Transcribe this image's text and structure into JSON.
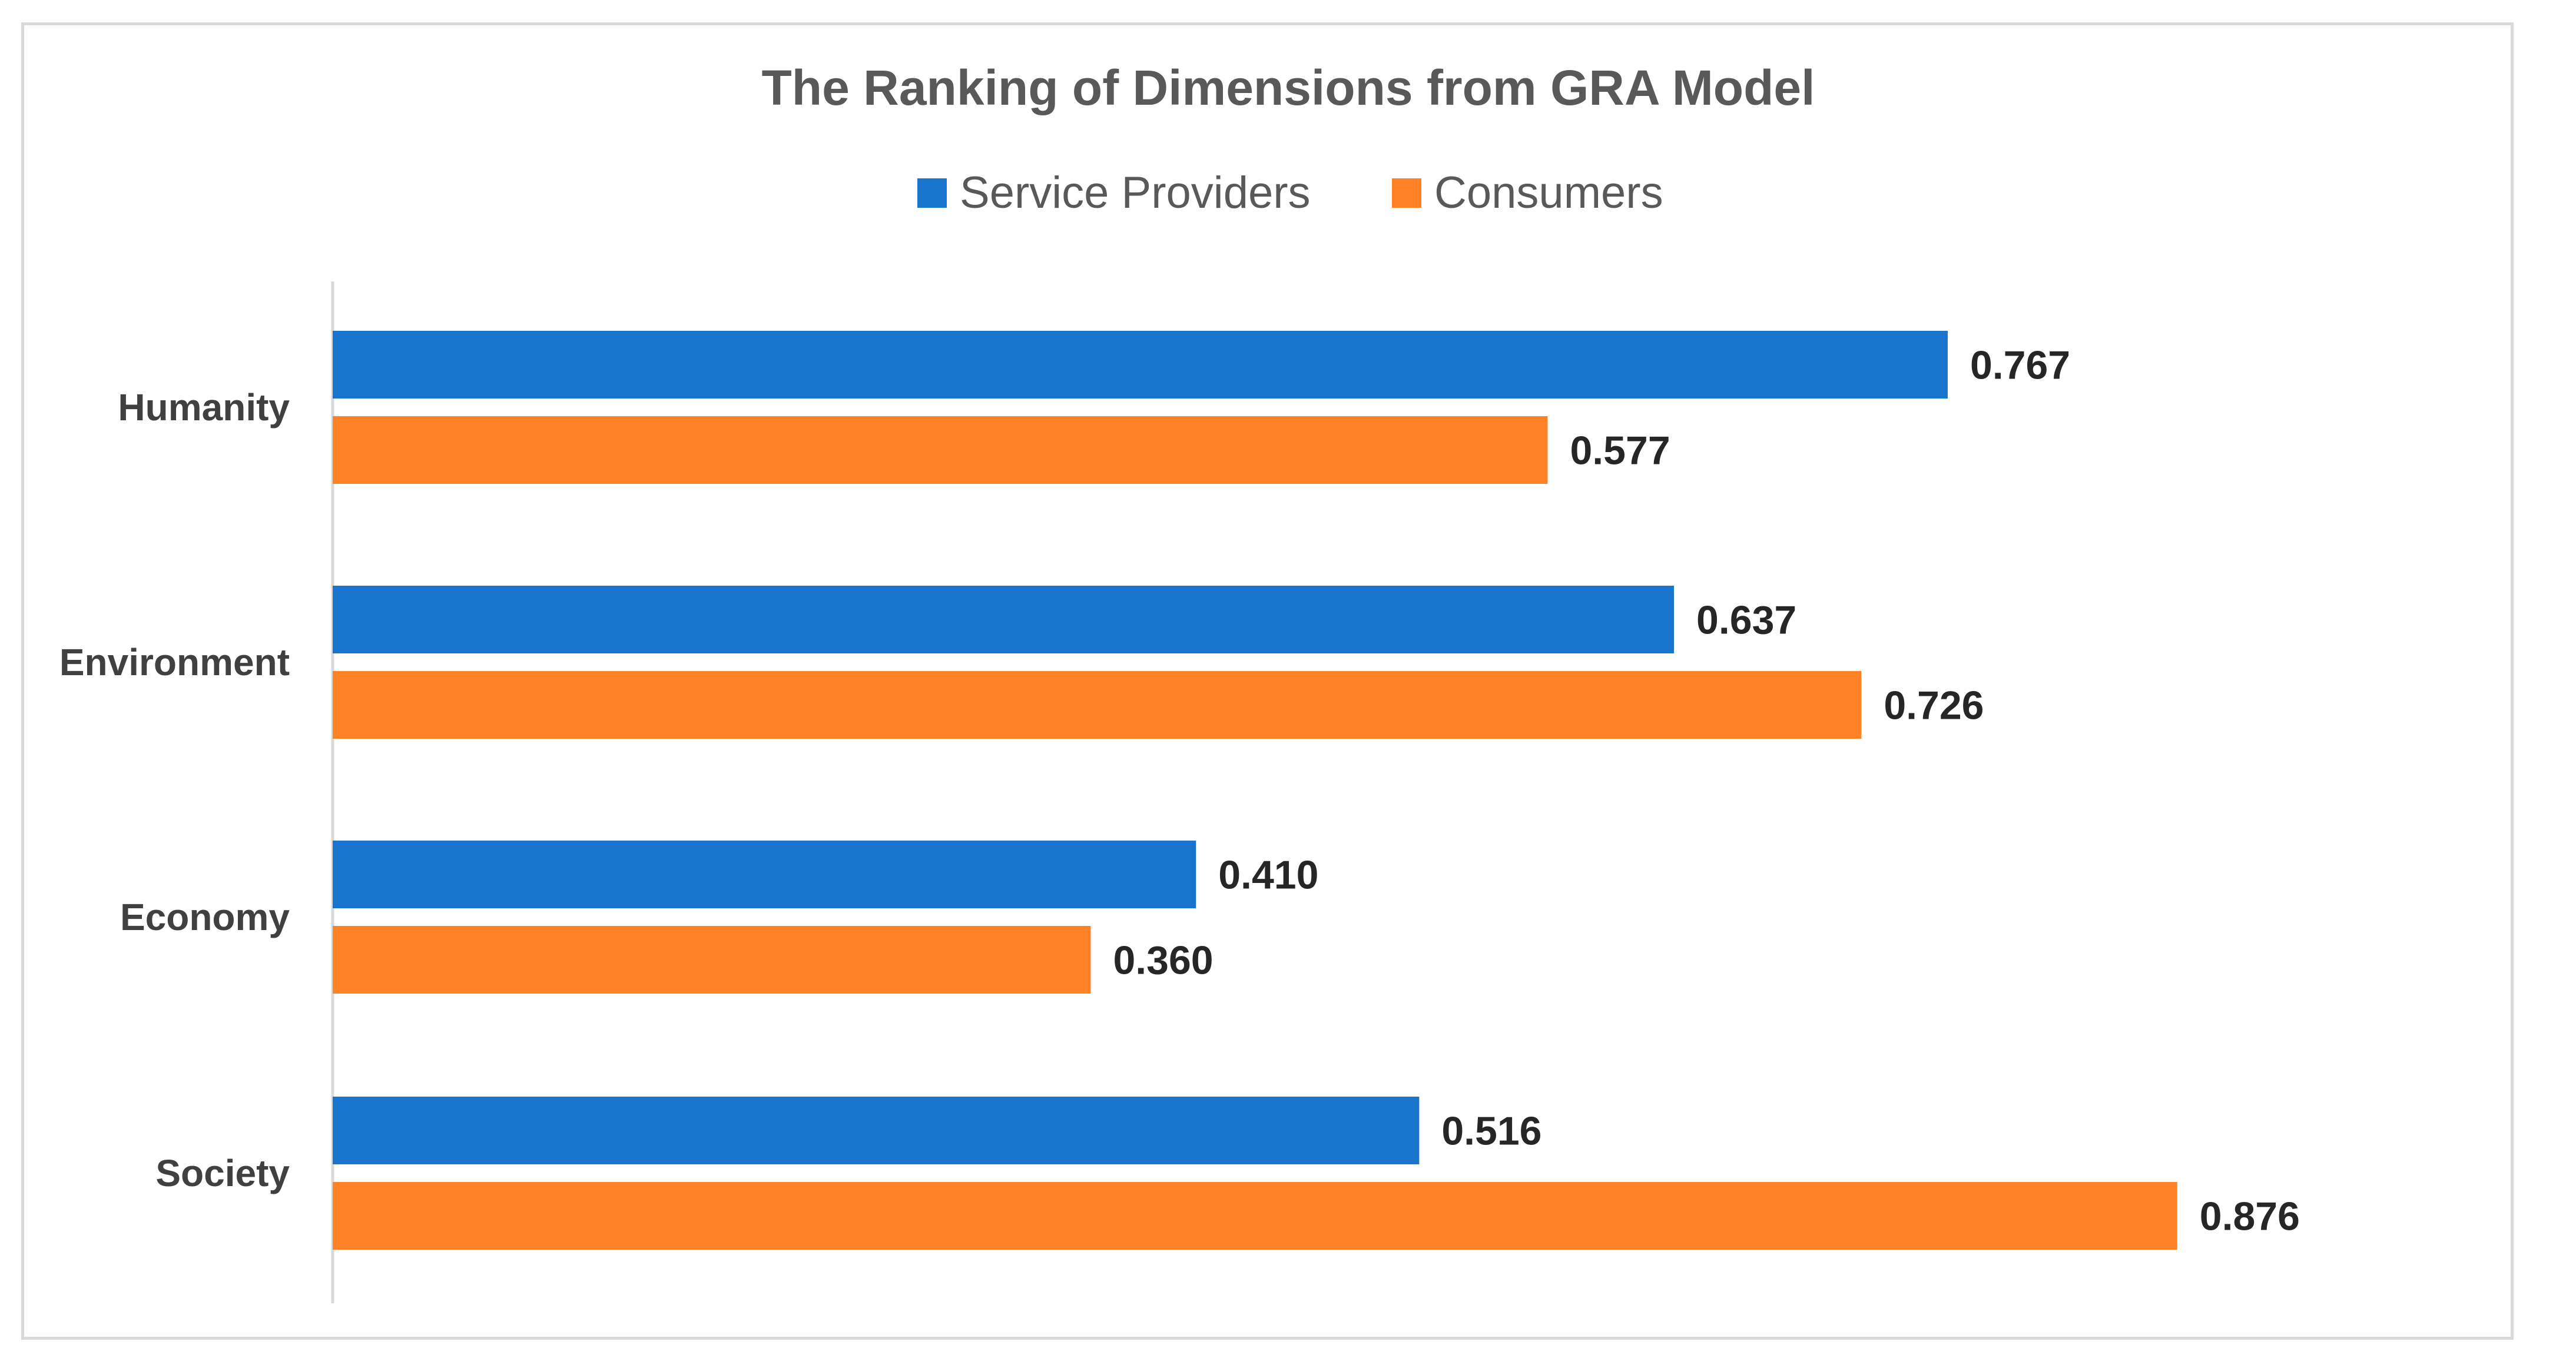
{
  "chart_data": {
    "type": "bar",
    "orientation": "horizontal",
    "title": "The Ranking of Dimensions from GRA Model",
    "categories": [
      "Humanity",
      "Environment",
      "Economy",
      "Society"
    ],
    "series": [
      {
        "name": "Service Providers",
        "color": "#1874CD",
        "values": [
          0.767,
          0.637,
          0.41,
          0.516
        ],
        "labels": [
          "0.767",
          "0.637",
          "0.410",
          "0.516"
        ]
      },
      {
        "name": "Consumers",
        "color": "#FF8126",
        "values": [
          0.577,
          0.726,
          0.36,
          0.876
        ],
        "labels": [
          "0.577",
          "0.726",
          "0.360",
          "0.876"
        ]
      }
    ],
    "xlim": [
      0,
      1
    ],
    "grid": false,
    "legend_position": "top"
  }
}
